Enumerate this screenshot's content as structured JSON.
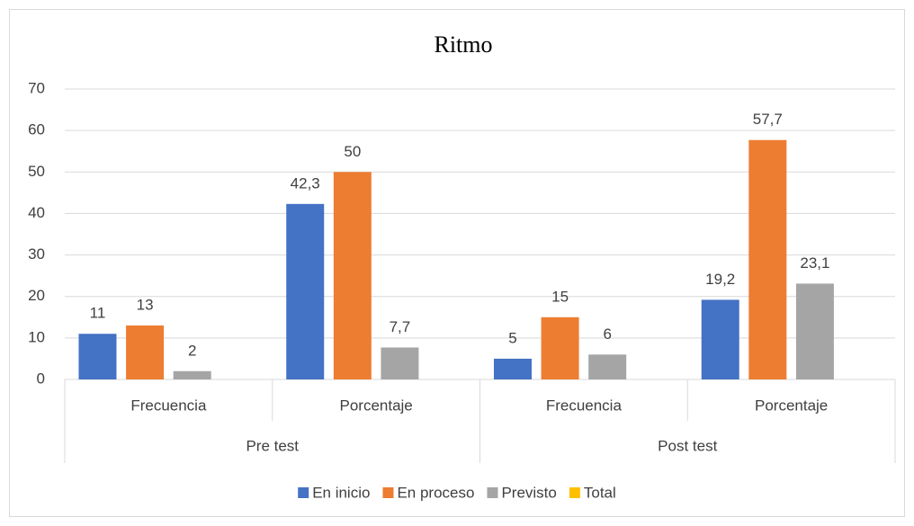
{
  "chart_data": {
    "type": "bar",
    "title": "Ritmo",
    "categories": [
      "Frecuencia",
      "Porcentaje",
      "Frecuencia",
      "Porcentaje"
    ],
    "category_groups": [
      {
        "name": "Pre test",
        "span": 2
      },
      {
        "name": "Post test",
        "span": 2
      }
    ],
    "series": [
      {
        "name": "En inicio",
        "color": "#4472c4",
        "values": [
          11,
          42.3,
          5,
          19.2
        ],
        "value_labels": [
          "11",
          "42,3",
          "5",
          "19,2"
        ]
      },
      {
        "name": "En proceso",
        "color": "#ed7d31",
        "values": [
          13,
          50,
          15,
          57.7
        ],
        "value_labels": [
          "13",
          "50",
          "15",
          "57,7"
        ]
      },
      {
        "name": "Previsto",
        "color": "#a5a5a5",
        "values": [
          2,
          7.7,
          6,
          23.1
        ],
        "value_labels": [
          "2",
          "7,7",
          "6",
          "23,1"
        ]
      },
      {
        "name": "Total",
        "color": "#ffc000",
        "values": [
          null,
          null,
          null,
          null
        ],
        "value_labels": [
          null,
          null,
          null,
          null
        ]
      }
    ],
    "ylim": [
      0,
      70
    ],
    "yticks": [
      0,
      10,
      20,
      30,
      40,
      50,
      60,
      70
    ],
    "grid": true,
    "legend": "bottom"
  }
}
